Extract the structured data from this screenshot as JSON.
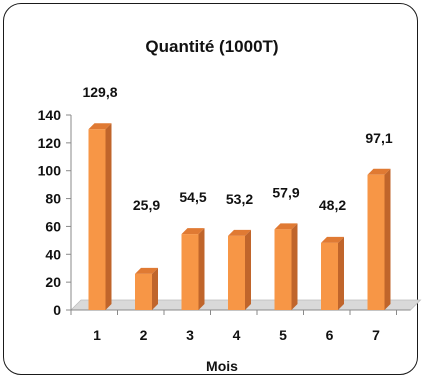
{
  "chart_data": {
    "type": "bar",
    "title": "Quantité (1000T)",
    "xlabel": "Mois",
    "ylabel": "",
    "categories": [
      "1",
      "2",
      "3",
      "4",
      "5",
      "6",
      "7"
    ],
    "values": [
      129.8,
      25.9,
      54.5,
      53.2,
      57.9,
      48.2,
      97.1
    ],
    "value_labels": [
      "129,8",
      "25,9",
      "54,5",
      "53,2",
      "57,9",
      "48,2",
      "97,1"
    ],
    "y_ticks": [
      "0",
      "20",
      "40",
      "60",
      "80",
      "100",
      "120",
      "140"
    ],
    "ylim": [
      0,
      140
    ],
    "grid": false,
    "legend": "none",
    "style": "3d-column",
    "colors": {
      "front": "#F79646",
      "side": "#C0652B",
      "top": "#E07A33",
      "floor": "#D9D9D9"
    }
  }
}
